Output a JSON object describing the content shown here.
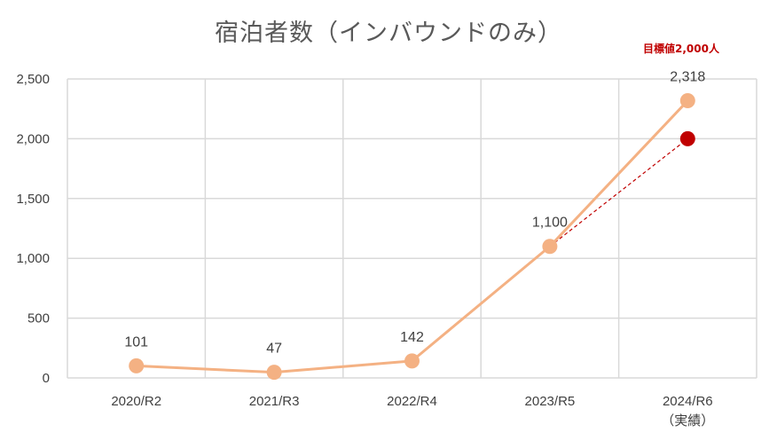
{
  "chart_data": {
    "type": "line",
    "title": "宿泊者数（インバウンドのみ）",
    "categories": [
      "2020/R2",
      "2021/R3",
      "2022/R4",
      "2023/R5",
      "2024/R6"
    ],
    "category_sublabels": [
      "",
      "",
      "",
      "",
      "（実績）"
    ],
    "ylim": [
      0,
      2500
    ],
    "yticks": [
      0,
      500,
      1000,
      1500,
      2000,
      2500
    ],
    "ytick_labels": [
      "0",
      "500",
      "1,000",
      "1,500",
      "2,000",
      "2,500"
    ],
    "grid": true,
    "series": [
      {
        "values": [
          101,
          47,
          142,
          1100,
          2318
        ],
        "data_labels": [
          "101",
          "47",
          "142",
          "1,100",
          "2,318"
        ],
        "color": "#f4b183"
      }
    ],
    "target": {
      "label": "目標値2,000人",
      "value": 2000,
      "from_category_index": 3,
      "to_category_index": 4,
      "color": "#c00000"
    }
  }
}
